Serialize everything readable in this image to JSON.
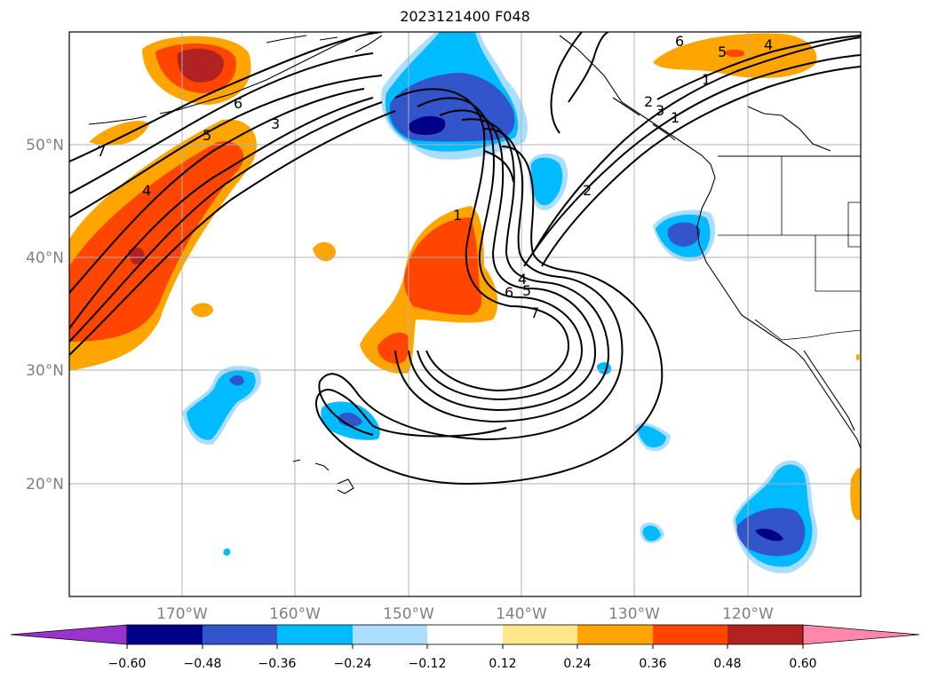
{
  "title": "2023121400 F048",
  "lat_labels": [
    "50°N",
    "40°N",
    "30°N",
    "20°N"
  ],
  "lon_labels": [
    "170°W",
    "160°W",
    "150°W",
    "140°W",
    "130°W",
    "120°W"
  ],
  "colorbar": {
    "ticks": [
      "−0.60",
      "−0.48",
      "−0.36",
      "−0.24",
      "−0.12",
      "0.12",
      "0.24",
      "0.36",
      "0.48",
      "0.60"
    ],
    "colors": [
      "#9933cc",
      "#000088",
      "#3355cc",
      "#00bbff",
      "#aaddff",
      "#ffffff",
      "#ffe88a",
      "#ffa500",
      "#ff4500",
      "#b22222",
      "#ff88aa"
    ]
  },
  "contour_labels": [
    "7",
    "6",
    "5",
    "4",
    "3",
    "1",
    "2",
    "4",
    "5",
    "6",
    "7",
    "1",
    "4",
    "5",
    "6",
    "3",
    "2",
    "1"
  ],
  "colors": {
    "grid": "#b0b0b0",
    "contour": "#000000",
    "coast": "#000000"
  }
}
